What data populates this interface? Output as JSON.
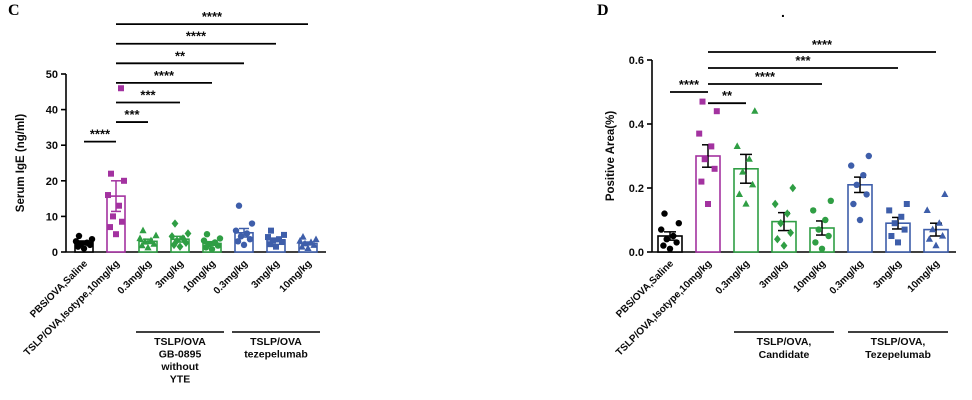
{
  "panels": [
    {
      "label": "C"
    },
    {
      "label": "D",
      "mark": "."
    }
  ],
  "colors": {
    "black": "#000000",
    "purple": "#A332A0",
    "green": "#2F9E44",
    "blue": "#3E5EAA"
  },
  "chart_data": [
    {
      "type": "scatter",
      "panel": "C",
      "title": "",
      "ylabel": "Serum IgE (ng/ml)",
      "xlabel": "",
      "ylim": [
        0,
        50
      ],
      "yticks": [
        {
          "value": 0,
          "label": "0"
        },
        {
          "value": 10,
          "label": "10"
        },
        {
          "value": 20,
          "label": "20"
        },
        {
          "value": 30,
          "label": "30"
        },
        {
          "value": 40,
          "label": "40"
        },
        {
          "value": 50,
          "label": "50"
        }
      ],
      "categories": [
        "PBS/OVA,Saline",
        "TSLP/OVA,Isotype,10mg/kg",
        "0.3mg/kg",
        "3mg/kg",
        "10mg/kg",
        "0.3mg/kg",
        "3mg/kg",
        "10mg/kg"
      ],
      "error_color": "series",
      "series": [
        {
          "name": "PBS/OVA,Saline",
          "color": "black",
          "marker": "circle",
          "mean": 2.6,
          "sem": 0.5,
          "points": [
            1.0,
            1.5,
            2.0,
            2.3,
            2.6,
            3.0,
            3.6,
            4.5
          ]
        },
        {
          "name": "TSLP/OVA,Isotype,10mg/kg",
          "color": "purple",
          "marker": "square",
          "mean": 15.7,
          "sem": 4.3,
          "points": [
            5,
            7,
            8.5,
            10,
            13,
            16,
            20,
            22,
            46
          ]
        },
        {
          "name": "0.3mg/kg",
          "color": "green",
          "marker": "triangle",
          "mean": 3.0,
          "sem": 0.6,
          "points": [
            1.2,
            1.8,
            2.2,
            2.8,
            3.2,
            3.8,
            4.6,
            6.0
          ]
        },
        {
          "name": "3mg/kg",
          "color": "green",
          "marker": "diamond",
          "mean": 3.6,
          "sem": 0.8,
          "points": [
            1.5,
            2.0,
            2.6,
            3.2,
            3.8,
            4.4,
            5.2,
            8.0
          ]
        },
        {
          "name": "10mg/kg",
          "color": "green",
          "marker": "circle",
          "mean": 2.4,
          "sem": 0.5,
          "points": [
            0.8,
            1.3,
            1.8,
            2.2,
            2.7,
            3.2,
            3.8,
            5.0
          ]
        },
        {
          "name": "0.3mg/kg",
          "color": "blue",
          "marker": "circle",
          "mean": 5.4,
          "sem": 1.2,
          "points": [
            2.0,
            3.0,
            3.6,
            4.4,
            5.2,
            6.0,
            8.0,
            13.0
          ]
        },
        {
          "name": "3mg/kg",
          "color": "blue",
          "marker": "square",
          "mean": 3.4,
          "sem": 0.5,
          "points": [
            1.5,
            2.2,
            2.8,
            3.2,
            3.6,
            4.2,
            4.8,
            6.0
          ]
        },
        {
          "name": "10mg/kg",
          "color": "blue",
          "marker": "triangle",
          "mean": 2.4,
          "sem": 0.4,
          "points": [
            1.0,
            1.4,
            1.9,
            2.3,
            2.7,
            3.1,
            3.5,
            4.2
          ]
        }
      ],
      "brackets": [
        {
          "from": 0,
          "to": 1,
          "label": "****",
          "y": 31
        },
        {
          "from": 1,
          "to": 2,
          "label": "***",
          "y": 36.5
        },
        {
          "from": 1,
          "to": 3,
          "label": "***",
          "y": 42
        },
        {
          "from": 1,
          "to": 4,
          "label": "****",
          "y": 47.5
        },
        {
          "from": 1,
          "to": 5,
          "label": "**",
          "y": 53
        },
        {
          "from": 1,
          "to": 6,
          "label": "****",
          "y": 58.5
        },
        {
          "from": 1,
          "to": 7,
          "label": "****",
          "y": 64
        }
      ],
      "group_spans": [
        {
          "from": 2,
          "to": 4,
          "lines": [
            "TSLP/OVA",
            "GB-0895",
            "without",
            "YTE"
          ]
        },
        {
          "from": 5,
          "to": 7,
          "lines": [
            "TSLP/OVA",
            "tezepelumab"
          ]
        }
      ]
    },
    {
      "type": "bar",
      "panel": "D",
      "title": "",
      "ylabel": "Positive Area(%)",
      "xlabel": "",
      "ylim": [
        0,
        0.6
      ],
      "yticks": [
        {
          "value": 0,
          "label": "0.0"
        },
        {
          "value": 0.2,
          "label": "0.2"
        },
        {
          "value": 0.4,
          "label": "0.4"
        },
        {
          "value": 0.6,
          "label": "0.6"
        }
      ],
      "categories": [
        "PBS/OVA,Saline",
        "TSLP/OVA,Isotype,10mg/kg",
        "0.3mg/kg",
        "3mg/kg",
        "10mg/kg",
        "0.3mg/kg",
        "3mg/kg",
        "10mg/kg"
      ],
      "error_color": "black",
      "series": [
        {
          "name": "PBS/OVA,Saline",
          "color": "black",
          "marker": "circle",
          "mean": 0.05,
          "sem": 0.013,
          "points": [
            0.01,
            0.02,
            0.03,
            0.04,
            0.05,
            0.07,
            0.09,
            0.12
          ]
        },
        {
          "name": "TSLP/OVA,Isotype,10mg/kg",
          "color": "purple",
          "marker": "square",
          "mean": 0.3,
          "sem": 0.035,
          "points": [
            0.15,
            0.22,
            0.26,
            0.29,
            0.33,
            0.37,
            0.44,
            0.47
          ]
        },
        {
          "name": "0.3mg/kg",
          "color": "green",
          "marker": "triangle",
          "mean": 0.26,
          "sem": 0.045,
          "points": [
            0.15,
            0.18,
            0.21,
            0.25,
            0.29,
            0.33,
            0.44
          ]
        },
        {
          "name": "3mg/kg",
          "color": "green",
          "marker": "diamond",
          "mean": 0.095,
          "sem": 0.028,
          "points": [
            0.02,
            0.04,
            0.06,
            0.09,
            0.12,
            0.15,
            0.2
          ]
        },
        {
          "name": "10mg/kg",
          "color": "green",
          "marker": "circle",
          "mean": 0.075,
          "sem": 0.022,
          "points": [
            0.01,
            0.03,
            0.05,
            0.07,
            0.1,
            0.13,
            0.16
          ]
        },
        {
          "name": "0.3mg/kg",
          "color": "blue",
          "marker": "circle",
          "mean": 0.21,
          "sem": 0.024,
          "points": [
            0.1,
            0.15,
            0.18,
            0.21,
            0.24,
            0.27,
            0.3
          ]
        },
        {
          "name": "3mg/kg",
          "color": "blue",
          "marker": "square",
          "mean": 0.09,
          "sem": 0.018,
          "points": [
            0.03,
            0.05,
            0.07,
            0.09,
            0.11,
            0.13,
            0.15
          ]
        },
        {
          "name": "10mg/kg",
          "color": "blue",
          "marker": "triangle",
          "mean": 0.07,
          "sem": 0.02,
          "points": [
            0.02,
            0.04,
            0.05,
            0.07,
            0.09,
            0.13,
            0.18
          ]
        }
      ],
      "brackets": [
        {
          "from": 0,
          "to": 1,
          "label": "****",
          "y": 0.5
        },
        {
          "from": 1,
          "to": 2,
          "label": "**",
          "y": 0.465
        },
        {
          "from": 1,
          "to": 4,
          "label": "****",
          "y": 0.525
        },
        {
          "from": 1,
          "to": 6,
          "label": "***",
          "y": 0.575
        },
        {
          "from": 1,
          "to": 7,
          "label": "****",
          "y": 0.625
        }
      ],
      "group_spans": [
        {
          "from": 2,
          "to": 4,
          "lines": [
            "TSLP/OVA,",
            "Candidate"
          ]
        },
        {
          "from": 5,
          "to": 7,
          "lines": [
            "TSLP/OVA,",
            "Tezepelumab"
          ]
        }
      ]
    }
  ]
}
